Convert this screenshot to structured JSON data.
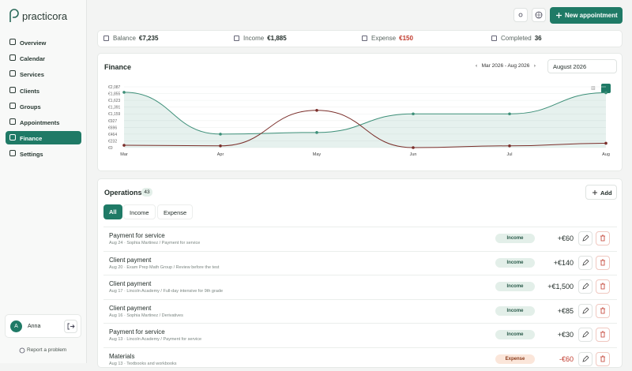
{
  "brand": "practicora",
  "nav": [
    "Overview",
    "Calendar",
    "Services",
    "Clients",
    "Groups",
    "Appointments",
    "Finance",
    "Settings"
  ],
  "user": {
    "initial": "A",
    "name": "Anna"
  },
  "report": "Report a problem",
  "topbar": {
    "new_appointment": "New appointment"
  },
  "stats": [
    {
      "label": "Balance",
      "value": "€7,235"
    },
    {
      "label": "Income",
      "value": "€1,885"
    },
    {
      "label": "Expense",
      "value": "€150"
    },
    {
      "label": "Completed",
      "value": 36
    }
  ],
  "finance": {
    "title": "Finance",
    "range": "Mar 2026 - Aug 2026",
    "month": "August 2026"
  },
  "chart_data": {
    "type": "line",
    "categories": [
      "Mar",
      "Apr",
      "May",
      "Jun",
      "Jul",
      "Aug"
    ],
    "series": [
      {
        "color": "#3d8f78",
        "values": [
          1900,
          464,
          520,
          1159,
          1159,
          1885
        ]
      },
      {
        "color": "#7a2e2a",
        "values": [
          80,
          60,
          1280,
          0,
          60,
          150
        ]
      }
    ],
    "ylim": [
      0,
      2087
    ],
    "yticks": [
      {
        "value": 0,
        "label": "€0"
      },
      {
        "value": 232,
        "label": "€232"
      },
      {
        "value": 464,
        "label": "€464"
      },
      {
        "value": 696,
        "label": "€696"
      },
      {
        "value": 927,
        "label": "€927"
      },
      {
        "value": 1159,
        "label": "€1,159"
      },
      {
        "value": 1391,
        "label": "€1,391"
      },
      {
        "value": 1623,
        "label": "€1,623"
      },
      {
        "value": 1855,
        "label": "€1,855"
      },
      {
        "value": 2087,
        "label": "€2,087"
      }
    ],
    "grid": true
  },
  "operations": {
    "title": "Operations",
    "count": 43,
    "add": "Add",
    "tabs": [
      "All",
      "Income",
      "Expense"
    ],
    "rows": [
      {
        "title": "Payment for service",
        "meta": "Aug 24 · Sophia Martinez / Payment for service",
        "type": "Income",
        "amount": "+€60"
      },
      {
        "title": "Client payment",
        "meta": "Aug 20 · Exam Prep Math Group / Review before the test",
        "type": "Income",
        "amount": "+€140"
      },
      {
        "title": "Client payment",
        "meta": "Aug 17 · Lincoln Academy / Full-day intensive for 9th grade",
        "type": "Income",
        "amount": "+€1,500"
      },
      {
        "title": "Client payment",
        "meta": "Aug 16 · Sophia Martinez / Derivatives",
        "type": "Income",
        "amount": "+€85"
      },
      {
        "title": "Payment for service",
        "meta": "Aug 13 · Lincoln Academy / Payment for service",
        "type": "Income",
        "amount": "+€30"
      },
      {
        "title": "Materials",
        "meta": "Aug 13 · Textbooks and workbooks",
        "type": "Expense",
        "amount": "-€60"
      }
    ]
  }
}
